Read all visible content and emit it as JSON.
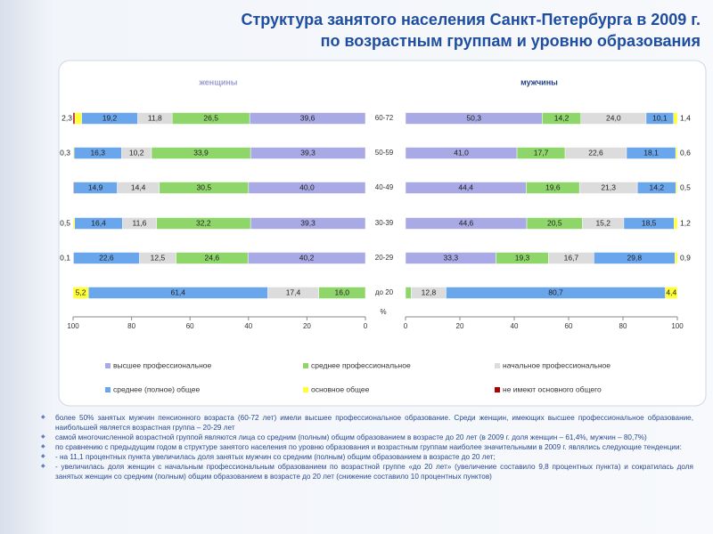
{
  "title": "Структура занятого населения Санкт-Петербурга в 2009 г.",
  "subtitle": "по возрастным группам и уровню образования",
  "chart_data": [
    {
      "type": "bar",
      "orientation": "horizontal",
      "stacked": true,
      "title": "женщины",
      "xlabel": "%",
      "categories": [
        "60-72",
        "50-59",
        "40-49",
        "30-39",
        "20-29",
        "до 20"
      ],
      "xlim": [
        100,
        0
      ],
      "xticks": [
        100,
        80,
        60,
        40,
        20,
        0
      ],
      "series": [
        {
          "name": "высшее профессиональное",
          "color": "#a9a9e6",
          "values": [
            39.6,
            39.3,
            40.0,
            39.3,
            40.2,
            null
          ],
          "value_labels": [
            "39,6",
            "39,3",
            "40,0",
            "39,3",
            "40,2",
            null
          ]
        },
        {
          "name": "среднее профессиональное",
          "color": "#8ed66a",
          "values": [
            26.5,
            33.9,
            30.5,
            32.2,
            24.6,
            16.0
          ],
          "value_labels": [
            "26,5",
            "33,9",
            "30,5",
            "32,2",
            "24,6",
            "16,0"
          ]
        },
        {
          "name": "начальное профессиональное",
          "color": "#dcdcdc",
          "values": [
            11.8,
            10.2,
            14.4,
            11.6,
            12.5,
            17.4
          ],
          "value_labels": [
            "11,8",
            "10,2",
            "14,4",
            "11,6",
            "12,5",
            "17,4"
          ]
        },
        {
          "name": "среднее (полное) общее",
          "color": "#6aa6ec",
          "values": [
            19.2,
            16.3,
            14.9,
            16.4,
            22.6,
            61.4
          ],
          "value_labels": [
            "19,2",
            "16,3",
            "14,9",
            "16,4",
            "22,6",
            "61,4"
          ]
        },
        {
          "name": "основное общее",
          "color": "#ffff33",
          "values": [
            2.3,
            0.3,
            null,
            0.5,
            0.1,
            5.2
          ],
          "value_labels": [
            "2,3",
            "0,3",
            null,
            "0,5",
            "0,1",
            "5,2"
          ]
        },
        {
          "name": "не имеют основного общего",
          "color": "#b00000",
          "values": [
            0.6,
            null,
            0.2,
            null,
            null,
            null
          ]
        }
      ]
    },
    {
      "type": "bar",
      "orientation": "horizontal",
      "stacked": true,
      "title": "мужчины",
      "xlim": [
        0,
        100
      ],
      "xticks": [
        0,
        20,
        40,
        60,
        80,
        100
      ],
      "series": [
        {
          "color": "#a9a9e6",
          "values": [
            50.3,
            41.0,
            44.4,
            44.6,
            33.3,
            null
          ],
          "value_labels": [
            "50,3",
            "41,0",
            "44,4",
            "44,6",
            "33,3",
            null
          ]
        },
        {
          "color": "#8ed66a",
          "values": [
            14.2,
            17.7,
            19.6,
            20.5,
            19.3,
            2.1
          ],
          "value_labels": [
            "14,2",
            "17,7",
            "19,6",
            "20,5",
            "19,3",
            "2,1"
          ]
        },
        {
          "color": "#dcdcdc",
          "values": [
            24.0,
            22.6,
            21.3,
            15.2,
            16.7,
            12.8
          ],
          "value_labels": [
            "24,0",
            "22,6",
            "21,3",
            "15,2",
            "16,7",
            "12,8"
          ]
        },
        {
          "color": "#6aa6ec",
          "values": [
            10.1,
            18.1,
            14.2,
            18.5,
            29.8,
            80.7
          ],
          "value_labels": [
            "10,1",
            "18,1",
            "14,2",
            "18,5",
            "29,8",
            "80,7"
          ]
        },
        {
          "color": "#ffff33",
          "values": [
            1.4,
            0.6,
            0.5,
            1.2,
            0.9,
            4.4
          ],
          "value_labels": [
            "1,4",
            "0,6",
            "0,5",
            "1,2",
            "0,9",
            "4,4"
          ]
        }
      ]
    }
  ],
  "notes": [
    "более 50% занятых мужчин пенсионного возраста (60-72 лет) имели высшее профессиональное образование. Среди женщин, имеющих высшее профессиональное образование, наибольшей является возрастная группа – 20-29 лет",
    "самой многочисленной возрастной группой являются лица со средним (полным) общим образованием в возрасте до 20 лет (в 2009 г. доля женщин – 61,4%, мужчин – 80,7%)",
    "по сравнению с предыдущим годом в структуре занятого населения по уровню образования и возрастным группам наиболее значительными в 2009 г. являлись следующие тенденции:",
    "- на 11,1 процентных пункта увеличилась доля занятых мужчин со средним (полным) общим образованием в возрасте до 20 лет;",
    "- увеличилась доля женщин с начальным профессиональным образованием по возрастной группе «до 20 лет» (увеличение составило 9,8 процентных пункта) и сократилась доля занятых женщин со средним (полным) общим образованием в возрасте до 20 лет (снижение составило 10 процентных пунктов)"
  ]
}
